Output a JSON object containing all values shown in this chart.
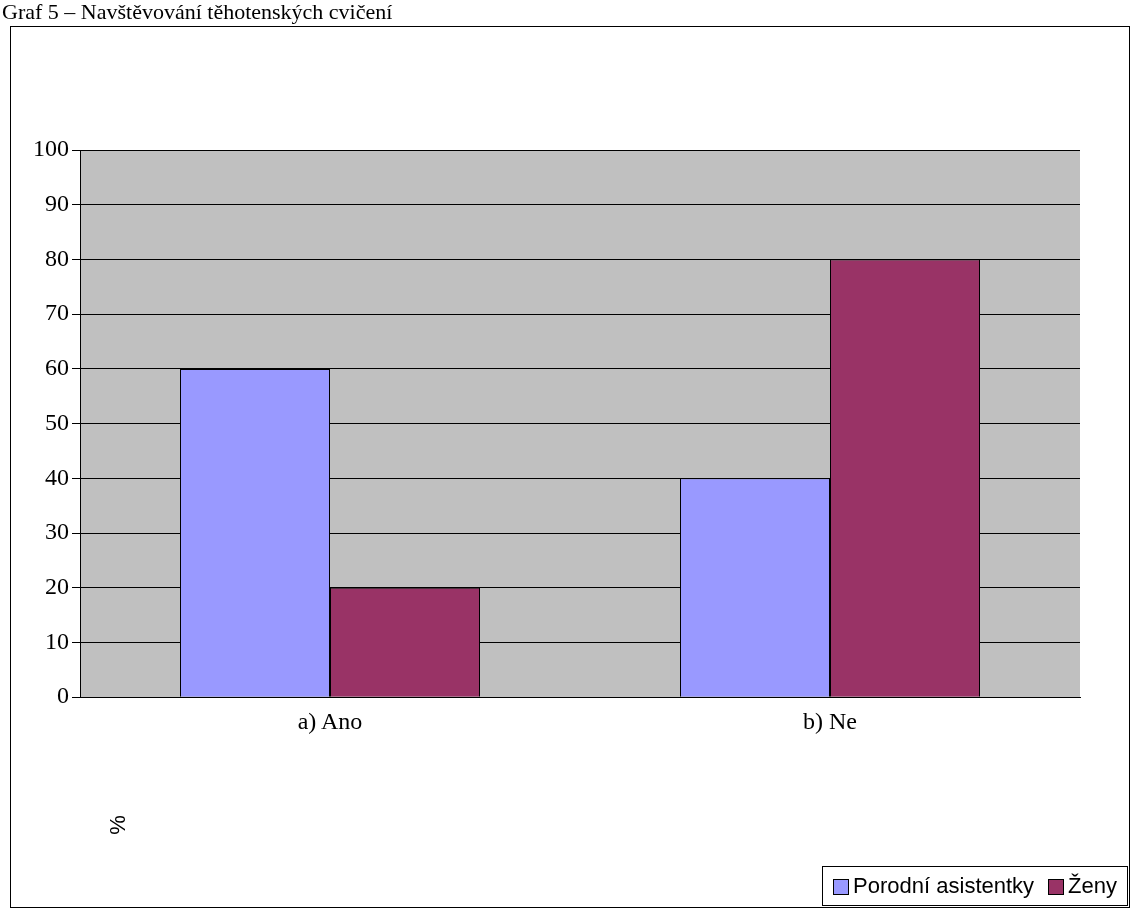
{
  "chart_data": {
    "type": "bar",
    "title": "Graf 5 – Navštěvování těhotenských cvičení",
    "ylabel": "%",
    "categories": [
      "a) Ano",
      "b) Ne"
    ],
    "series": [
      {
        "name": "Porodní asistentky",
        "color": "#9999ff",
        "values": [
          60,
          40
        ]
      },
      {
        "name": "Ženy",
        "color": "#993366",
        "values": [
          20,
          80
        ]
      }
    ],
    "ylim": [
      0,
      100
    ],
    "yticks": [
      0,
      10,
      20,
      30,
      40,
      50,
      60,
      70,
      80,
      90,
      100
    ],
    "grid": "y",
    "legend": "bottom right"
  }
}
